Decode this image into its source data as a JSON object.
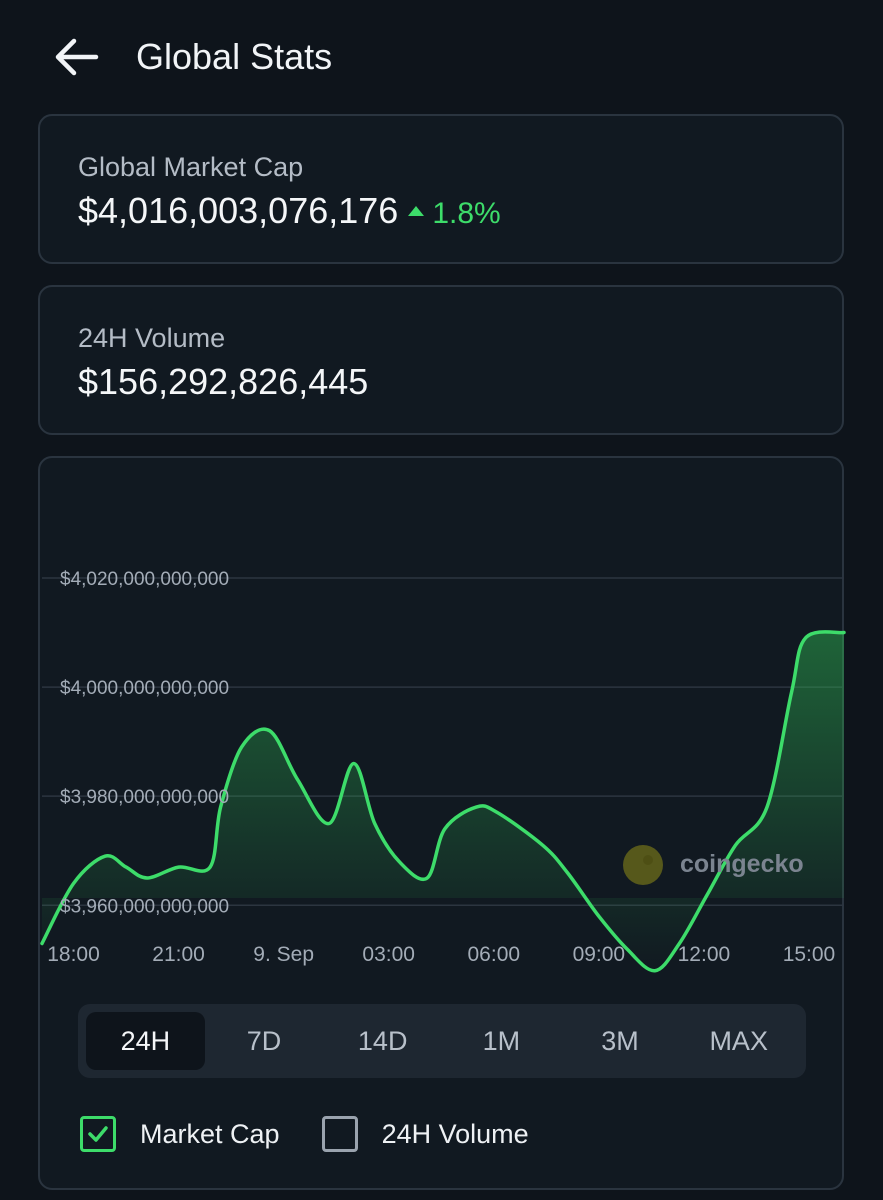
{
  "header": {
    "title": "Global Stats",
    "back_icon": "arrow-left-icon"
  },
  "market_cap": {
    "label": "Global Market Cap",
    "value": "$4,016,003,076,176",
    "change": "1.8%",
    "change_direction": "up",
    "change_color": "#3ddc6a"
  },
  "volume": {
    "label": "24H Volume",
    "value": "$156,292,826,445"
  },
  "watermark": "coingecko",
  "range_tabs": [
    {
      "label": "24H",
      "active": true
    },
    {
      "label": "7D",
      "active": false
    },
    {
      "label": "14D",
      "active": false
    },
    {
      "label": "1M",
      "active": false
    },
    {
      "label": "3M",
      "active": false
    },
    {
      "label": "MAX",
      "active": false
    }
  ],
  "legend": [
    {
      "label": "Market Cap",
      "checked": true
    },
    {
      "label": "24H Volume",
      "checked": false
    }
  ],
  "colors": {
    "line": "#3ddc6a",
    "background": "#0e141b",
    "card_border": "#2a343f"
  },
  "chart_data": {
    "type": "area",
    "y_tick_labels": [
      "$4,020,000,000,000",
      "$4,000,000,000,000",
      "$3,980,000,000,000",
      "$3,960,000,000,000"
    ],
    "y_ticks": [
      4020,
      4000,
      3980,
      3960
    ],
    "y_unit": "billion USD",
    "x_tick_labels": [
      "18:00",
      "21:00",
      "9. Sep",
      "03:00",
      "06:00",
      "09:00",
      "12:00",
      "15:00"
    ],
    "x_ticks": [
      18,
      21,
      24,
      27,
      30,
      33,
      36,
      39
    ],
    "x_unit": "hours",
    "xlim": [
      17.1,
      40.0
    ],
    "ylim": [
      3943,
      4042
    ],
    "grid": true,
    "series": [
      {
        "values": [
          [
            17.1,
            3953
          ],
          [
            18.0,
            3964
          ],
          [
            18.9,
            3969
          ],
          [
            19.5,
            3967
          ],
          [
            20.1,
            3965
          ],
          [
            21.0,
            3967
          ],
          [
            21.9,
            3967
          ],
          [
            22.2,
            3978
          ],
          [
            22.8,
            3989
          ],
          [
            23.6,
            3992
          ],
          [
            24.4,
            3983
          ],
          [
            25.3,
            3975
          ],
          [
            26.0,
            3986
          ],
          [
            26.6,
            3975
          ],
          [
            27.3,
            3968
          ],
          [
            28.1,
            3965
          ],
          [
            28.6,
            3974
          ],
          [
            29.5,
            3978
          ],
          [
            30.1,
            3977
          ],
          [
            31.4,
            3971
          ],
          [
            32.1,
            3966
          ],
          [
            33.0,
            3958
          ],
          [
            33.8,
            3952
          ],
          [
            34.6,
            3948
          ],
          [
            35.3,
            3953
          ],
          [
            36.1,
            3962
          ],
          [
            36.9,
            3971
          ],
          [
            37.8,
            3978
          ],
          [
            38.5,
            3999
          ],
          [
            38.9,
            4009
          ],
          [
            40.0,
            4010
          ]
        ]
      }
    ]
  }
}
